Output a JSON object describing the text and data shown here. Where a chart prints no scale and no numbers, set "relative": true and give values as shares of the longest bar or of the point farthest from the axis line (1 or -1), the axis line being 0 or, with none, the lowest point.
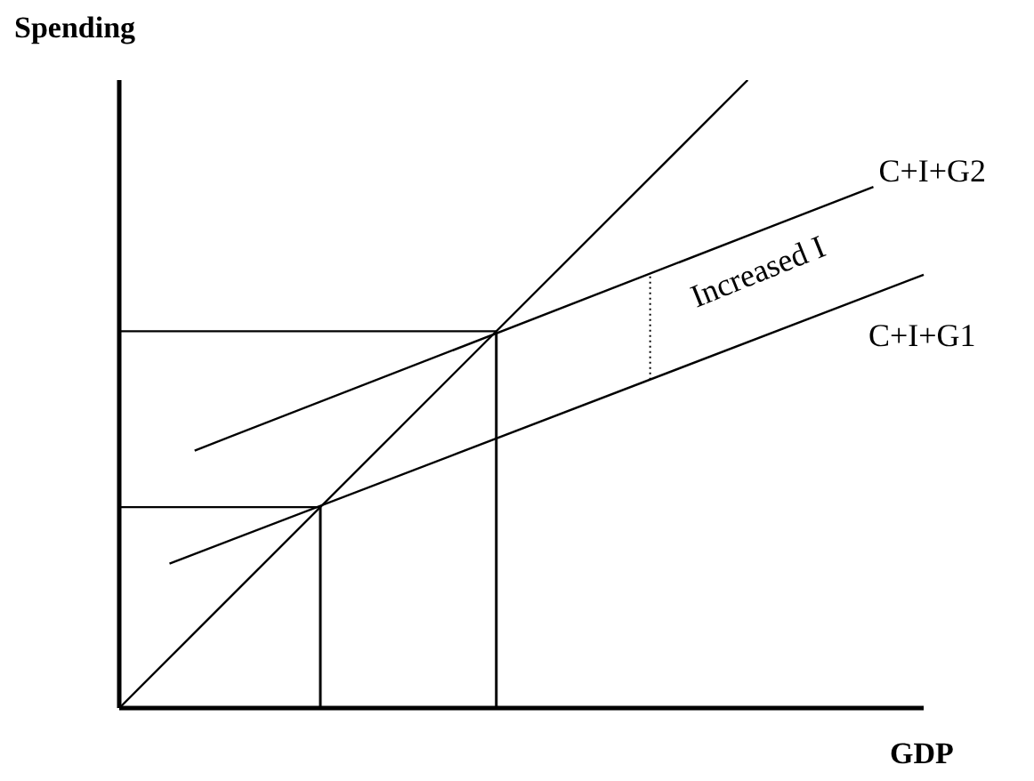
{
  "chart_data": {
    "type": "line",
    "relative": true,
    "xlabel": "GDP",
    "ylabel": "Spending",
    "marker": "none",
    "line_style": "solid",
    "color": "#000000",
    "annotations": [
      "Increased I"
    ],
    "categories": [
      null,
      null,
      null,
      null,
      null,
      null,
      null,
      null,
      null,
      null,
      null,
      null,
      null,
      null,
      null,
      null,
      null,
      null,
      null,
      null,
      null,
      null,
      null,
      null,
      null,
      null,
      null,
      null,
      null,
      null,
      null,
      null,
      null
    ],
    "series": [
      {
        "values": [
          0,
          null,
          null,
          null,
          null,
          null,
          null,
          null,
          null,
          null,
          null,
          null,
          null,
          null,
          null,
          null,
          null,
          null,
          null,
          null,
          null,
          null,
          null,
          null,
          null,
          1,
          null,
          null,
          null,
          null,
          null,
          null,
          null
        ]
      },
      {
        "name": "C+I+G1",
        "values": [
          null,
          null,
          0.23,
          null,
          null,
          null,
          null,
          null,
          null,
          null,
          null,
          null,
          null,
          null,
          null,
          null,
          null,
          null,
          null,
          null,
          null,
          null,
          null,
          null,
          null,
          null,
          null,
          null,
          null,
          null,
          null,
          null,
          0.69
        ]
      },
      {
        "name": "C+I+G2",
        "values": [
          null,
          null,
          null,
          0.41,
          null,
          null,
          null,
          null,
          null,
          null,
          null,
          null,
          null,
          null,
          null,
          null,
          null,
          null,
          null,
          null,
          null,
          null,
          null,
          null,
          null,
          null,
          null,
          null,
          null,
          null,
          0.83,
          null,
          null
        ]
      },
      {
        "values": [
          0.32,
          null,
          null,
          null,
          null,
          null,
          null,
          null,
          0.32,
          null,
          null,
          null,
          null,
          null,
          null,
          null,
          null,
          null,
          null,
          null,
          null,
          null,
          null,
          null,
          null,
          null,
          null,
          null,
          null,
          null,
          null,
          null,
          null
        ]
      },
      {
        "values": [
          0.6,
          null,
          null,
          null,
          null,
          null,
          null,
          null,
          null,
          null,
          null,
          null,
          null,
          null,
          null,
          0.6,
          null,
          null,
          null,
          null,
          null,
          null,
          null,
          null,
          null,
          null,
          null,
          null,
          null,
          null,
          null,
          null,
          null
        ]
      }
    ]
  }
}
